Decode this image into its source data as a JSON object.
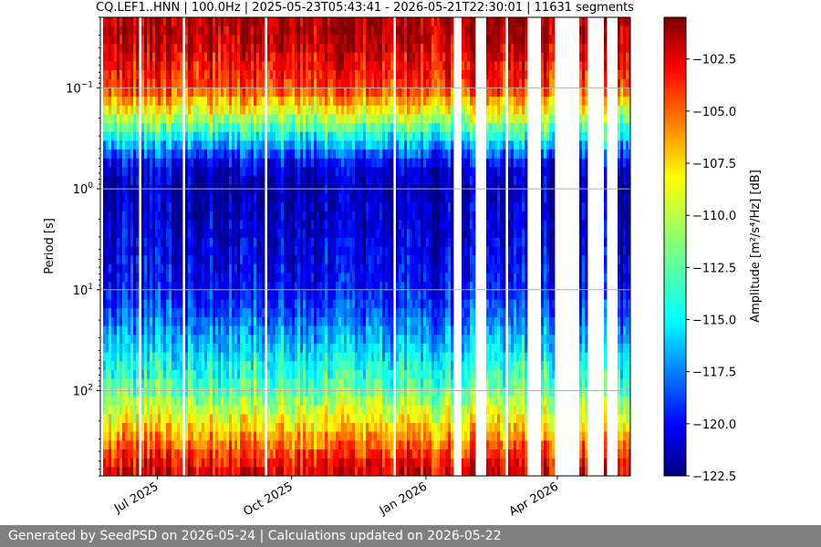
{
  "chart_data": {
    "type": "heatmap",
    "title": "CQ.LEF1..HNN | 100.0Hz | 2025-05-23T05:43:41 - 2026-05-21T22:30:01 | 11631 segments",
    "ylabel": "Period [s]",
    "colorbar_label": "Amplitude [m²/s⁴/Hz] [dB]",
    "x_range": [
      "2025-05-23",
      "2026-05-21"
    ],
    "y_scale": "log",
    "y_range": [
      0.02,
      700
    ],
    "y_ticks": [
      {
        "value": 0.1,
        "base": "10",
        "exp": "−1"
      },
      {
        "value": 1,
        "base": "10",
        "exp": "0"
      },
      {
        "value": 10,
        "base": "10",
        "exp": "1"
      },
      {
        "value": 100,
        "base": "10",
        "exp": "2"
      }
    ],
    "x_ticks": [
      "Jul 2025",
      "Oct 2025",
      "Jan 2026",
      "Apr 2026"
    ],
    "x_tick_dates": [
      "2025-07-01",
      "2025-10-01",
      "2026-01-01",
      "2026-04-01"
    ],
    "colorbar_range": [
      -122.5,
      -100.5
    ],
    "colorbar_ticks": [
      -102.5,
      -105.0,
      -107.5,
      -110.0,
      -112.5,
      -115.0,
      -117.5,
      -120.0,
      -122.5
    ],
    "colormap": "jet",
    "grid": true,
    "series": [
      {
        "period": 0.03,
        "amplitude_db": -101.5
      },
      {
        "period": 0.1,
        "amplitude_db": -104.5
      },
      {
        "period": 0.3,
        "amplitude_db": -114.0
      },
      {
        "period": 0.6,
        "amplitude_db": -120.5
      },
      {
        "period": 1,
        "amplitude_db": -121.5
      },
      {
        "period": 3,
        "amplitude_db": -120.5
      },
      {
        "period": 10,
        "amplitude_db": -119.5
      },
      {
        "period": 30,
        "amplitude_db": -116.0
      },
      {
        "period": 100,
        "amplitude_db": -112.0
      },
      {
        "period": 200,
        "amplitude_db": -108.5
      },
      {
        "period": 600,
        "amplitude_db": -102.5
      }
    ],
    "data_gaps": [
      [
        "2026-01-20",
        "2026-01-24"
      ],
      [
        "2026-02-05",
        "2026-02-10"
      ],
      [
        "2026-03-12",
        "2026-03-20"
      ],
      [
        "2026-04-01",
        "2026-04-16"
      ],
      [
        "2026-04-22",
        "2026-05-02"
      ],
      [
        "2026-05-06",
        "2026-05-12"
      ]
    ]
  },
  "footer": {
    "text": "Generated by SeedPSD on 2026-05-24 | Calculations updated on 2026-05-22"
  }
}
